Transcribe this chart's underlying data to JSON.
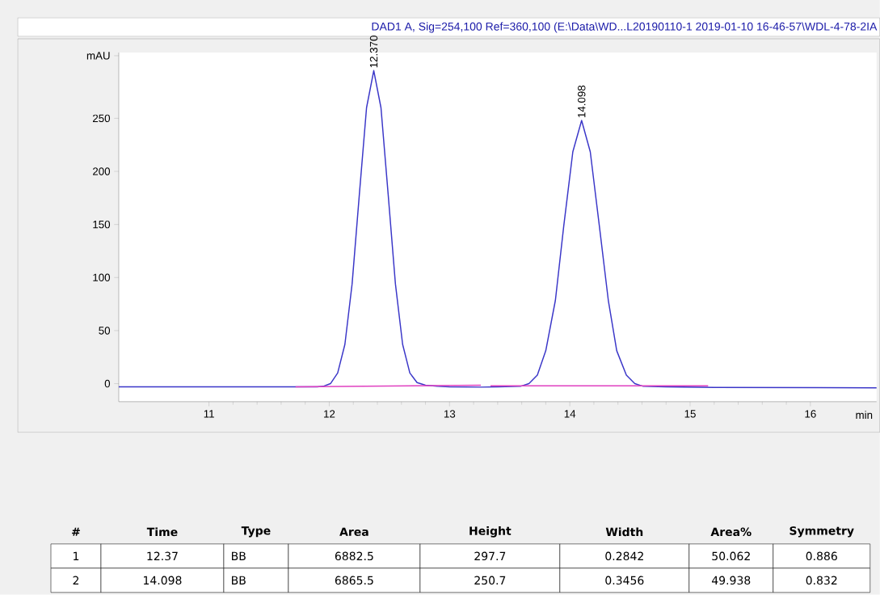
{
  "chart_data": {
    "type": "line",
    "title": "DAD1 A, Sig=254,100 Ref=360,100 (E:\\Data\\WD...L20190110-1 2019-01-10 16-46-57\\WDL-4-78-2IA",
    "xlabel": "min",
    "xlim": [
      10.25,
      16.55
    ],
    "ylim": [
      -17,
      312
    ],
    "xticks": [
      11,
      12,
      13,
      14,
      15,
      16
    ],
    "yticks": [
      0,
      50,
      100,
      150,
      200,
      250,
      {
        "value": 309,
        "label": "mAU"
      }
    ],
    "series": [
      {
        "color": "#3a36c8",
        "x": [
          10.25,
          11.0,
          11.5,
          11.9,
          11.95,
          12.01,
          12.07,
          12.13,
          12.19,
          12.25,
          12.31,
          12.37,
          12.43,
          12.49,
          12.55,
          12.61,
          12.67,
          12.73,
          12.8,
          12.9,
          13.0,
          13.26,
          13.4,
          13.59,
          13.66,
          13.73,
          13.8,
          13.88,
          13.95,
          14.025,
          14.098,
          14.17,
          14.245,
          14.32,
          14.39,
          14.47,
          14.54,
          14.61,
          14.8,
          15.2,
          16.55
        ],
        "values": [
          -3,
          -3,
          -3,
          -3,
          -2.5,
          0,
          10,
          37,
          94,
          178,
          260,
          295,
          260,
          178,
          94,
          37,
          10,
          1,
          -1.5,
          -2.5,
          -3,
          -3.3,
          -3,
          -2.5,
          0,
          8,
          31,
          78.5,
          149,
          218.5,
          248,
          218.5,
          149,
          78.5,
          31,
          8,
          0,
          -2.5,
          -3,
          -3.5,
          -4
        ]
      },
      {
        "color": "#e040c0",
        "x": [
          11.72,
          13.26,
          13.3,
          13.34,
          15.15
        ],
        "values": [
          -3,
          -1.5,
          null,
          -2,
          -2
        ]
      }
    ],
    "annotations": [
      {
        "text": "12.370",
        "x": 12.37,
        "y": 295
      },
      {
        "text": "14.098",
        "x": 14.098,
        "y": 248
      },
      "#",
      "Time",
      "Type",
      "Area",
      "Height",
      "Width",
      "Area%",
      "Symmetry",
      "1",
      "12.37",
      "BB",
      "6882.5",
      "297.7",
      "0.2842",
      "50.062",
      "0.886",
      "2",
      "14.098",
      "BB",
      "6865.5",
      "250.7",
      "0.3456",
      "49.938",
      "0.832"
    ]
  }
}
